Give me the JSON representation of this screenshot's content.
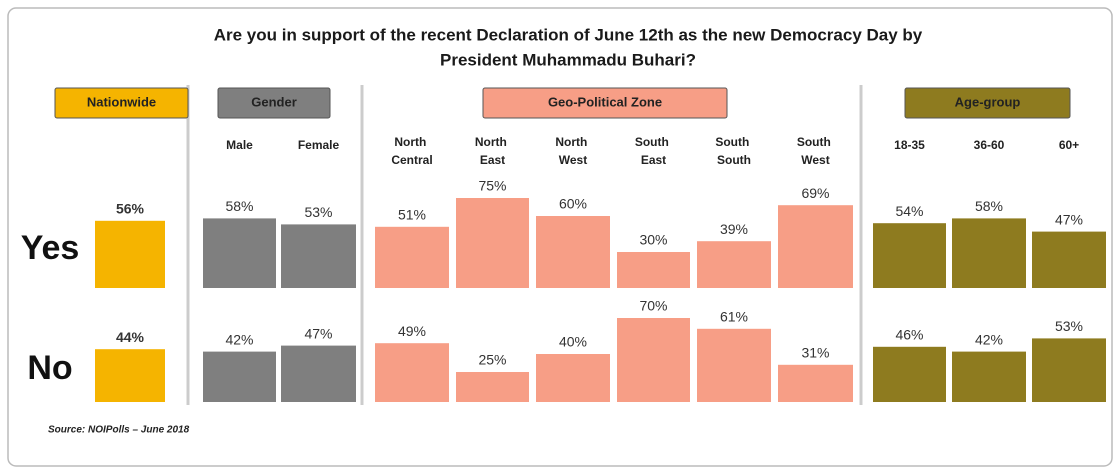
{
  "chart_data": {
    "type": "bar",
    "title_lines": [
      "Are you in support of the recent Declaration of June 12th as the new Democracy Day by",
      "President Muhammadu Buhari?"
    ],
    "rows": [
      "Yes",
      "No"
    ],
    "source": "Source: NOIPolls – June 2018",
    "panels": [
      {
        "name": "Nationwide",
        "color": "#f5b400",
        "categories": [
          null
        ],
        "values": [
          [
            56
          ],
          [
            44
          ]
        ],
        "value_labels": [
          [
            "56%"
          ],
          [
            "44%"
          ]
        ]
      },
      {
        "name": "Gender",
        "color": "#7f7f7f",
        "categories": [
          "Male",
          "Female"
        ],
        "values": [
          [
            58,
            53
          ],
          [
            42,
            47
          ]
        ],
        "value_labels": [
          [
            "58%",
            "53%"
          ],
          [
            "42%",
            "47%"
          ]
        ]
      },
      {
        "name": "Geo-Political Zone",
        "color": "#f79e86",
        "categories": [
          "North Central",
          "North East",
          "North West",
          "South East",
          "South South",
          "South West"
        ],
        "values": [
          [
            51,
            75,
            60,
            30,
            39,
            69
          ],
          [
            49,
            25,
            40,
            70,
            61,
            31
          ]
        ],
        "value_labels": [
          [
            "51%",
            "75%",
            "60%",
            "30%",
            "39%",
            "69%"
          ],
          [
            "49%",
            "25%",
            "40%",
            "70%",
            "61%",
            "31%"
          ]
        ]
      },
      {
        "name": "Age-group",
        "color": "#8e7b1f",
        "categories": [
          "18-35",
          "36-60",
          "60+"
        ],
        "values": [
          [
            54,
            58,
            47
          ],
          [
            46,
            42,
            53
          ]
        ],
        "value_labels": [
          [
            "54%",
            "58%",
            "47%"
          ],
          [
            "46%",
            "42%",
            "53%"
          ]
        ]
      }
    ]
  }
}
